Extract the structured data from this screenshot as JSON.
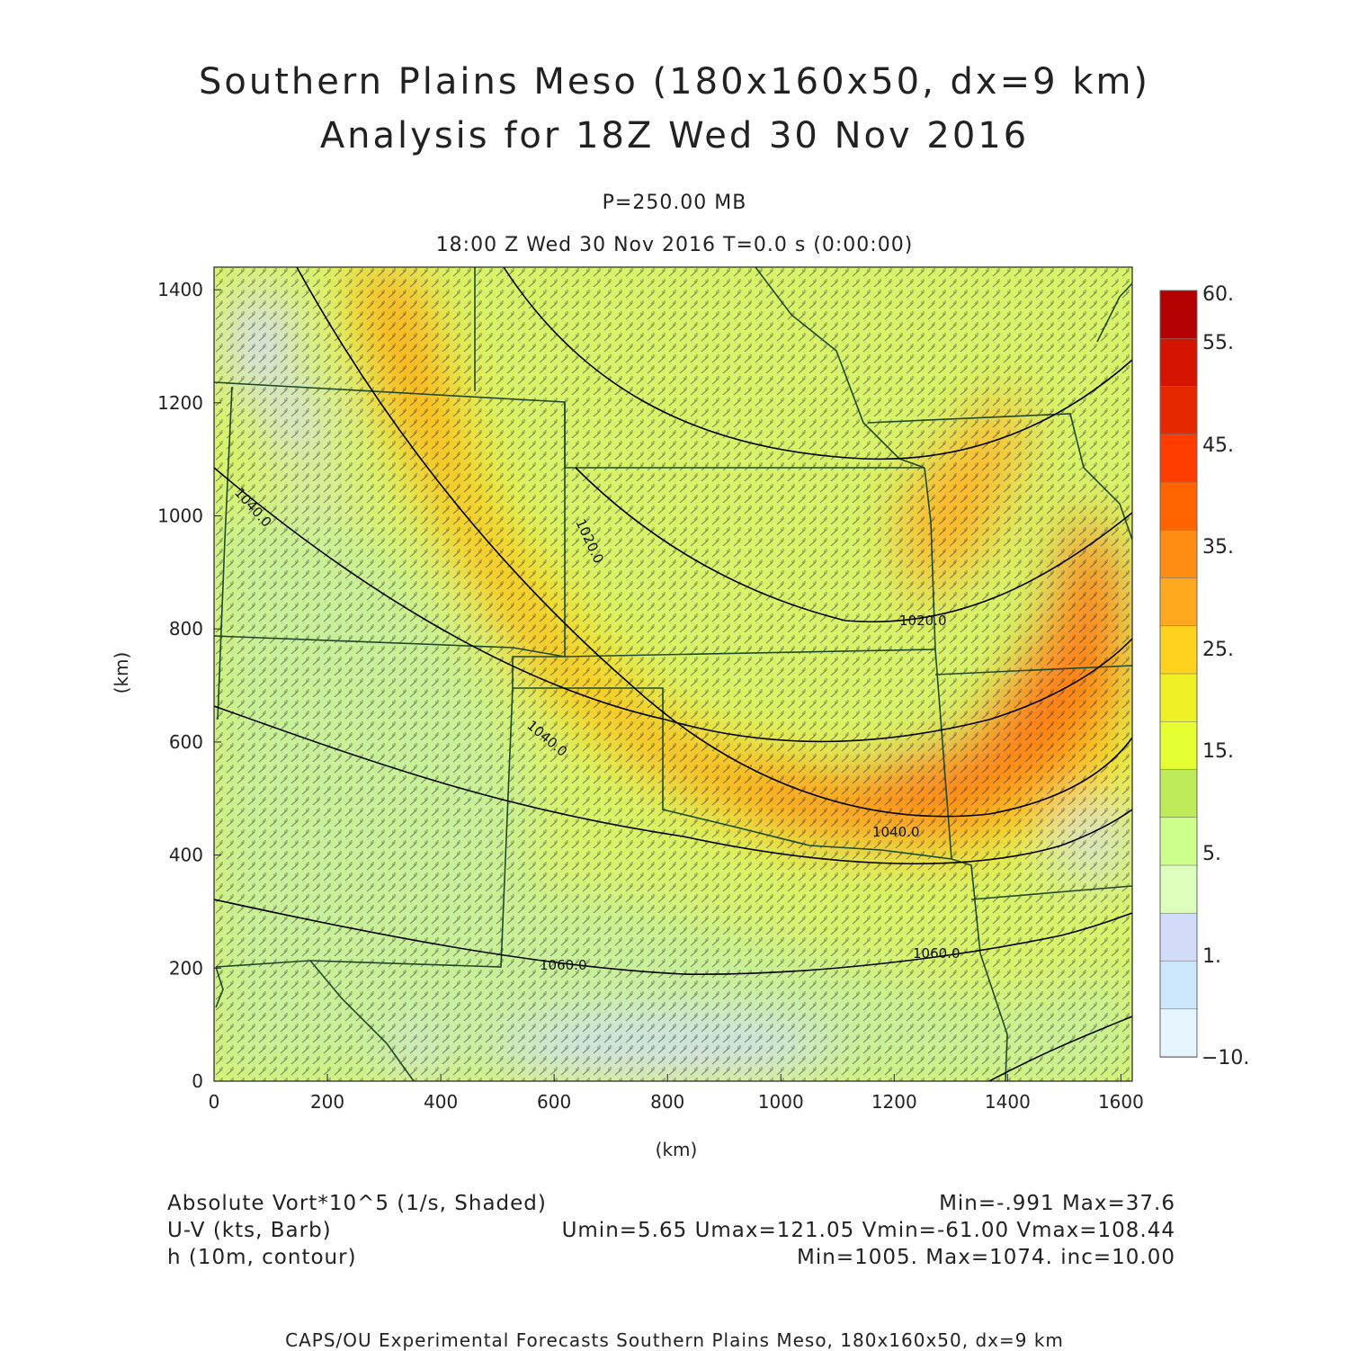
{
  "titles": {
    "line1": "Southern Plains Meso (180x160x50, dx=9 km)",
    "line2": "Analysis for 18Z Wed 30 Nov 2016",
    "level": "P=250.00 MB",
    "time": "18:00 Z Wed 30 Nov 2016    T=0.0 s (0:00:00)"
  },
  "axes": {
    "xlabel": "(km)",
    "ylabel": "(km)",
    "x_ticks": [
      "0",
      "200",
      "400",
      "600",
      "800",
      "1000",
      "1200",
      "1400",
      "1600"
    ],
    "y_ticks": [
      "0",
      "200",
      "400",
      "600",
      "800",
      "1000",
      "1200",
      "1400"
    ],
    "x_range": [
      0,
      1620
    ],
    "y_range": [
      0,
      1440
    ]
  },
  "colorbar": {
    "labels": [
      "60.",
      "55.",
      "45.",
      "35.",
      "25.",
      "15.",
      "5.",
      "1.",
      "−10."
    ],
    "colors": [
      "#b40000",
      "#d21400",
      "#e62800",
      "#ff3c00",
      "#ff6400",
      "#ff8c14",
      "#ffaa1e",
      "#ffd21e",
      "#f0f028",
      "#e6ff32",
      "#beeb5a",
      "#cdff8c",
      "#dcffbe",
      "#d2dcfa",
      "#cde8fa",
      "#e6f5ff"
    ]
  },
  "contours": {
    "labels": [
      "1020.0",
      "1020.0",
      "1040.0",
      "1040.0",
      "1040.0",
      "1060.0",
      "1060.0"
    ]
  },
  "legend": {
    "shade_field": "Absolute Vort*10^5 (1/s, Shaded)",
    "shade_stats": "Min=-.991 Max=37.6",
    "barb_field": "U-V (kts, Barb)",
    "barb_stats": "Umin=5.65 Umax=121.05 Vmin=-61.00 Vmax=108.44",
    "contour_field": "h (10m, contour)",
    "contour_stats": "Min=1005. Max=1074. inc=10.00"
  },
  "footer": "CAPS/OU Experimental Forecasts  Southern Plains Meso, 180x160x50, dx=9 km",
  "colors": {
    "border": "#1f4a2a",
    "contour": "#000000",
    "barb": "#2a2a2a"
  }
}
